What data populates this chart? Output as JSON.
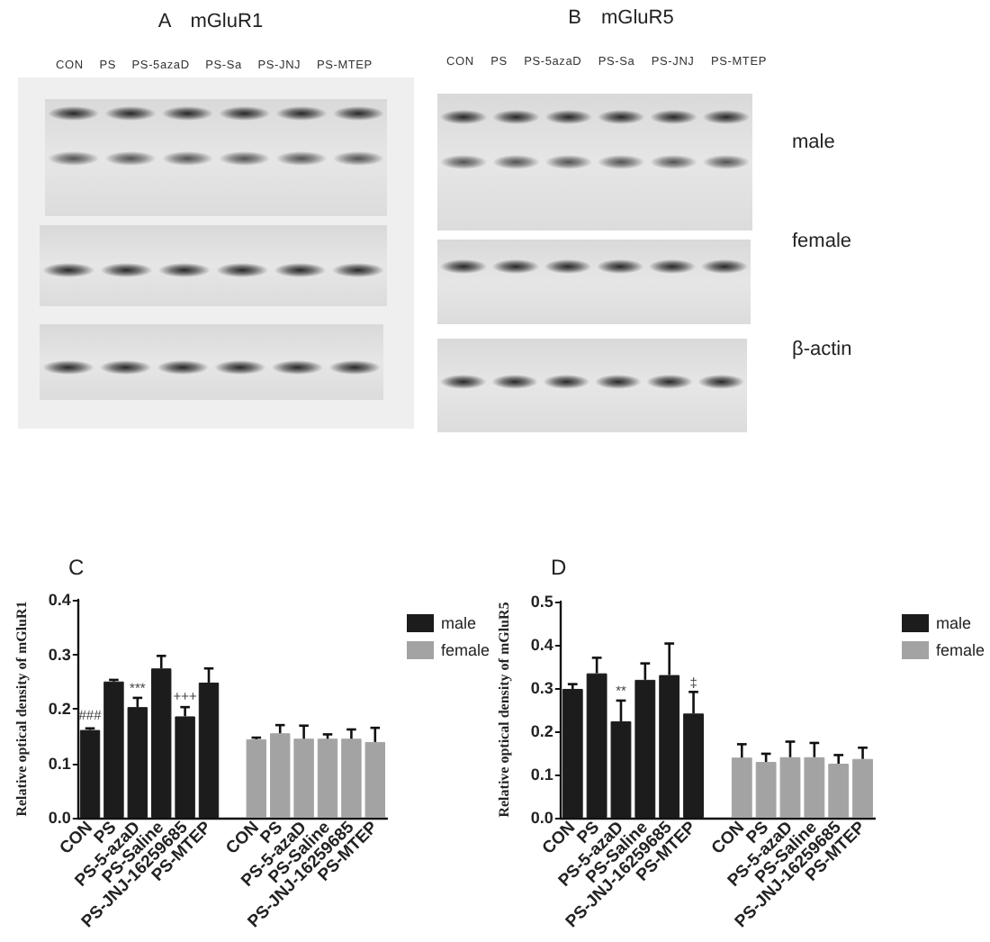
{
  "chart_data": [
    {
      "type": "other",
      "title": "A mGluR1",
      "categories": [
        "CON",
        "PS",
        "PS-5azaD",
        "PS-Sa",
        "PS-JNJ",
        "PS-MTEP"
      ]
    },
    {
      "type": "other",
      "title": "B mGluR5",
      "categories": [
        "CON",
        "PS",
        "PS-5azaD",
        "PS-Sa",
        "PS-JNJ",
        "PS-MTEP"
      ],
      "annotations": [
        "male",
        "female",
        "β-actin"
      ]
    },
    {
      "type": "bar",
      "title": "C",
      "ylabel": "Relative optical density of mGluR1",
      "categories": [
        "CON",
        "PS",
        "PS-5-azaD",
        "PS-Saline",
        "PS-JNJ-16259685",
        "PS-MTEP",
        null,
        "CON",
        "PS",
        "PS-5-azaD",
        "PS-Saline",
        "PS-JNJ-16259685",
        "PS-MTEP"
      ],
      "series": [
        {
          "name": "male",
          "color": "#1c1c1c",
          "values": [
            0.161,
            0.25,
            0.203,
            0.274,
            0.186,
            0.248,
            null,
            null,
            null,
            null,
            null,
            null,
            null
          ],
          "errors": [
            0.003,
            0.003,
            0.017,
            0.023,
            0.017,
            0.026,
            null,
            null,
            null,
            null,
            null,
            null,
            null
          ]
        },
        {
          "name": "female",
          "color": "#a3a3a3",
          "values": [
            null,
            null,
            null,
            null,
            null,
            null,
            null,
            0.144,
            0.155,
            0.145,
            0.145,
            0.145,
            0.139
          ],
          "errors": [
            null,
            null,
            null,
            null,
            null,
            null,
            null,
            0.003,
            0.015,
            0.024,
            0.008,
            0.017,
            0.026
          ]
        }
      ],
      "ylim": [
        0,
        0.4
      ],
      "yticks": [
        {
          "value": 0,
          "label": "0.0"
        },
        0.1,
        0.2,
        0.3,
        0.4
      ],
      "legend": "top right",
      "annotations": [
        {
          "text": "###",
          "x": "CON",
          "y": 0.175
        },
        {
          "text": "***",
          "x": "PS-5-azaD",
          "y": 0.225
        },
        {
          "text": "+++",
          "x": "PS-JNJ-16259685",
          "y": 0.21
        }
      ]
    },
    {
      "type": "bar",
      "title": "D",
      "ylabel": "Relative optical density of mGluR5",
      "categories": [
        "CON",
        "PS",
        "PS-5-azaD",
        "PS-Saline",
        "PS-JNJ-16259685",
        "PS-MTEP",
        null,
        "CON",
        "PS",
        "PS-5-azaD",
        "PS-Saline",
        "PS-JNJ-16259685",
        "PS-MTEP"
      ],
      "series": [
        {
          "name": "male",
          "color": "#1c1c1c",
          "values": [
            0.298,
            0.334,
            0.223,
            0.319,
            0.33,
            0.241,
            null,
            null,
            null,
            null,
            null,
            null,
            null
          ],
          "errors": [
            0.011,
            0.036,
            0.048,
            0.038,
            0.073,
            0.05,
            null,
            null,
            null,
            null,
            null,
            null,
            null
          ]
        },
        {
          "name": "female",
          "color": "#a3a3a3",
          "values": [
            null,
            null,
            null,
            null,
            null,
            null,
            null,
            0.139,
            0.129,
            0.14,
            0.14,
            0.125,
            0.136
          ],
          "errors": [
            null,
            null,
            null,
            null,
            null,
            null,
            null,
            0.031,
            0.019,
            0.036,
            0.033,
            0.02,
            0.026
          ]
        }
      ],
      "ylim": [
        0,
        0.5
      ],
      "yticks": [
        {
          "value": 0,
          "label": "0.0"
        },
        0.1,
        0.2,
        0.3,
        0.4,
        0.5
      ],
      "legend": "top right",
      "annotations": [
        {
          "text": "**",
          "x": "PS-5-azaD",
          "y": 0.278
        },
        {
          "text": "‡",
          "x": "PS-MTEP",
          "y": 0.296
        }
      ]
    }
  ]
}
